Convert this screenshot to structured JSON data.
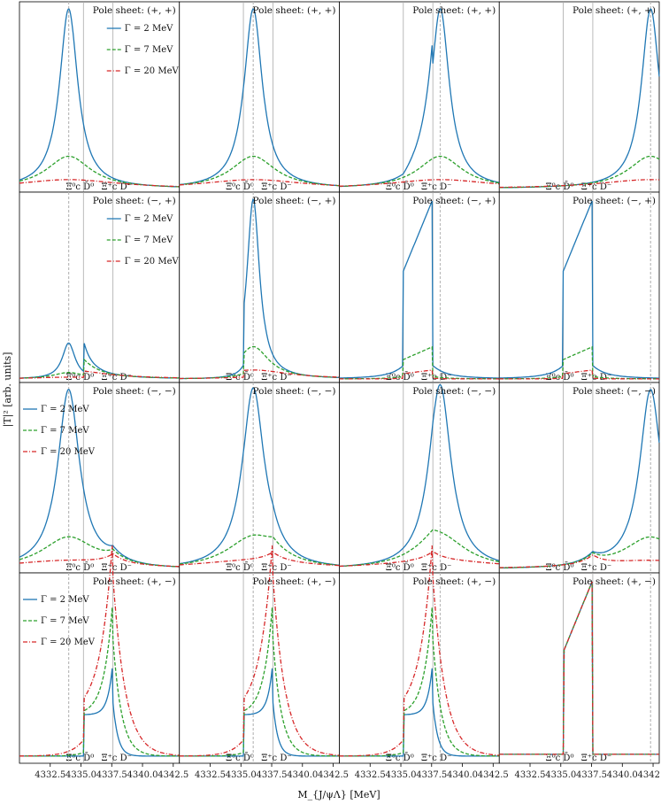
{
  "figure": {
    "xlabel": "M_{J/ψΛ} [MeV]",
    "ylabel": "|T|² [arb. units]"
  },
  "chart_data": {
    "type": "line",
    "grid": "4 rows x 4 columns, shared x axis",
    "xlim": [
      4330.0,
      4343.0
    ],
    "x_ticks": [
      4332.5,
      4335.0,
      4337.5,
      4340.0,
      4342.5
    ],
    "x_tick_labels": [
      "4332.5",
      "4335.0",
      "4337.5",
      "4340.0",
      "4342.5"
    ],
    "y_tick_labels_shown": false,
    "thresholds": [
      {
        "label": "Ξ⁰c D̄⁰",
        "x": 4335.2
      },
      {
        "label": "Ξ⁺c D⁻",
        "x": 4337.6
      }
    ],
    "series": [
      {
        "name": "Γ = 2 MeV",
        "color": "#1f77b4",
        "dash": "solid"
      },
      {
        "name": "Γ = 7 MeV",
        "color": "#2ca02c",
        "dash": "dashed"
      },
      {
        "name": "Γ = 20 MeV",
        "color": "#d62728",
        "dash": "dashdot"
      }
    ],
    "row_sheets": [
      "(+, +)",
      "(−, +)",
      "(−, −)",
      "(+, −)"
    ],
    "sheet_prefix": "Pole sheet:",
    "legend_rows": [
      0,
      1,
      2,
      3
    ],
    "legend_position": "upper-right in row 0 and 1, upper-left in rows 2 and 3",
    "column_pole_positions": [
      4334.0,
      4336.0,
      4338.2,
      4342.3
    ],
    "panels": [
      {
        "row": 0,
        "col": 0,
        "sheet": "(+, +)",
        "pole": 4334.0
      },
      {
        "row": 0,
        "col": 1,
        "sheet": "(+, +)",
        "pole": 4336.0
      },
      {
        "row": 0,
        "col": 2,
        "sheet": "(+, +)",
        "pole": 4338.2
      },
      {
        "row": 0,
        "col": 3,
        "sheet": "(+, +)",
        "pole": 4342.3
      },
      {
        "row": 1,
        "col": 0,
        "sheet": "(−, +)",
        "pole": 4334.0
      },
      {
        "row": 1,
        "col": 1,
        "sheet": "(−, +)",
        "pole": 4336.0
      },
      {
        "row": 1,
        "col": 2,
        "sheet": "(−, +)",
        "pole": 4338.2
      },
      {
        "row": 1,
        "col": 3,
        "sheet": "(−, +)",
        "pole": 4342.3
      },
      {
        "row": 2,
        "col": 0,
        "sheet": "(−, −)",
        "pole": 4334.0
      },
      {
        "row": 2,
        "col": 1,
        "sheet": "(−, −)",
        "pole": 4336.0
      },
      {
        "row": 2,
        "col": 2,
        "sheet": "(−, −)",
        "pole": 4338.2
      },
      {
        "row": 2,
        "col": 3,
        "sheet": "(−, −)",
        "pole": 4342.3
      },
      {
        "row": 3,
        "col": 0,
        "sheet": "(+, −)",
        "pole": 4334.0
      },
      {
        "row": 3,
        "col": 1,
        "sheet": "(+, −)",
        "pole": 4336.0
      },
      {
        "row": 3,
        "col": 2,
        "sheet": "(+, −)",
        "pole": 4338.2
      },
      {
        "row": 3,
        "col": 3,
        "sheet": "(+, −)",
        "pole": 4342.3
      }
    ]
  }
}
